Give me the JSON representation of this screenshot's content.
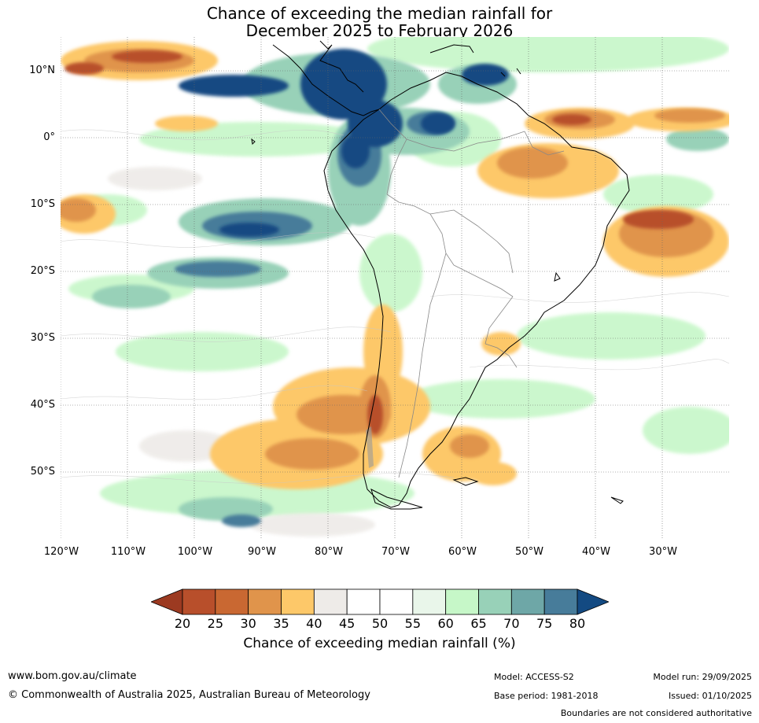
{
  "title": {
    "line1": "Chance of exceeding the median rainfall for",
    "line2": "December 2025 to February 2026"
  },
  "map": {
    "lat_labels": [
      "10°N",
      "0°",
      "10°S",
      "20°S",
      "30°S",
      "40°S",
      "50°S"
    ],
    "lon_labels": [
      "120°W",
      "110°W",
      "100°W",
      "90°W",
      "80°W",
      "70°W",
      "60°W",
      "50°W",
      "40°W",
      "30°W"
    ],
    "extent": {
      "lon": [
        -120,
        -20
      ],
      "lat": [
        -60,
        15
      ]
    }
  },
  "colorbar": {
    "ticks": [
      "20",
      "25",
      "30",
      "35",
      "40",
      "45",
      "50",
      "55",
      "60",
      "65",
      "70",
      "75",
      "80"
    ],
    "colors": [
      "#9c3a21",
      "#b84f2b",
      "#c96832",
      "#e0944b",
      "#fdc869",
      "#eeebe8",
      "#ffffff",
      "#ffffff",
      "#e9f6ea",
      "#c6f7c8",
      "#98d1b8",
      "#6ea7a7",
      "#477c9a",
      "#134a82"
    ],
    "title": "Chance of exceeding median rainfall (%)"
  },
  "footer": {
    "website": "www.bom.gov.au/climate",
    "copyright": "© Commonwealth of Australia 2025, Australian Bureau of Meteorology",
    "model": "Model: ACCESS-S2",
    "base_period": "Base period: 1981-2018",
    "model_run": "Model run: 29/09/2025",
    "issued": "Issued: 01/10/2025",
    "disclaimer": "Boundaries are not considered authoritative"
  }
}
